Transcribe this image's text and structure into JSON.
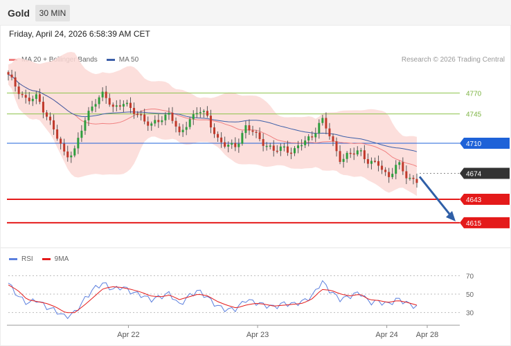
{
  "header": {
    "symbol": "Gold",
    "timeframe": "30 MIN",
    "datetime": "Friday, April 24, 2026 6:58:39 AM CET",
    "credit": "Research © 2026 Trading Central"
  },
  "colors": {
    "candle_up": "#2e9e3e",
    "candle_down": "#c0392b",
    "bollinger_fill": "#fcd9d6",
    "ma20": "#f08080",
    "ma50": "#3b5ea8",
    "resistance": "#8bc34a",
    "pivot": "#1e62d8",
    "support": "#e41a1a",
    "last_price": "#333333",
    "rsi": "#5b7fde",
    "rsi_ma": "#e41a1a",
    "arrow": "#2f5fa7"
  },
  "chart_data": [
    {
      "type": "candlestick",
      "legend": [
        {
          "name": "MA 20 + Bollinger Bands",
          "color": "#f08080"
        },
        {
          "name": "MA 50",
          "color": "#3b5ea8"
        }
      ],
      "x_tick_labels": [
        "Apr 22",
        "Apr 23",
        "Apr 24",
        "Apr 28"
      ],
      "ylim": [
        4600,
        4815
      ],
      "levels": [
        {
          "label": "4770",
          "value": 4770,
          "role": "resistance"
        },
        {
          "label": "4745",
          "value": 4745,
          "role": "resistance"
        },
        {
          "label": "4710",
          "value": 4710,
          "role": "pivot"
        },
        {
          "label": "4674",
          "value": 4674,
          "role": "last"
        },
        {
          "label": "4643",
          "value": 4643,
          "role": "support"
        },
        {
          "label": "4615",
          "value": 4615,
          "role": "support"
        }
      ],
      "price_path": [
        4790,
        4775,
        4760,
        4765,
        4745,
        4720,
        4695,
        4702,
        4735,
        4760,
        4768,
        4752,
        4760,
        4748,
        4743,
        4730,
        4738,
        4748,
        4718,
        4738,
        4750,
        4740,
        4716,
        4705,
        4708,
        4730,
        4720,
        4710,
        4700,
        4705,
        4700,
        4710,
        4720,
        4738,
        4715,
        4690,
        4696,
        4703,
        4685,
        4685,
        4670,
        4685,
        4670,
        4665
      ],
      "projection": {
        "from": 4670,
        "to": 4615,
        "direction": "down"
      }
    },
    {
      "type": "line",
      "legend": [
        {
          "name": "RSI",
          "color": "#5b7fde"
        },
        {
          "name": "9MA",
          "color": "#e41a1a"
        }
      ],
      "y_ticks": [
        70,
        50,
        30
      ],
      "ylim": [
        20,
        80
      ],
      "series": [
        {
          "name": "RSI",
          "values": [
            62,
            48,
            40,
            44,
            36,
            32,
            25,
            30,
            44,
            56,
            62,
            55,
            58,
            52,
            49,
            44,
            47,
            51,
            38,
            48,
            54,
            46,
            37,
            33,
            34,
            44,
            41,
            38,
            36,
            40,
            39,
            42,
            48,
            64,
            52,
            44,
            48,
            52,
            41,
            42,
            39,
            45,
            40,
            36
          ]
        },
        {
          "name": "9MA",
          "values": [
            60,
            54,
            44,
            42,
            40,
            36,
            30,
            30,
            38,
            47,
            56,
            58,
            57,
            55,
            52,
            48,
            47,
            49,
            44,
            47,
            50,
            48,
            42,
            38,
            35,
            38,
            40,
            39,
            37,
            38,
            39,
            40,
            45,
            55,
            54,
            50,
            48,
            50,
            44,
            43,
            41,
            43,
            41,
            38
          ]
        }
      ]
    }
  ]
}
